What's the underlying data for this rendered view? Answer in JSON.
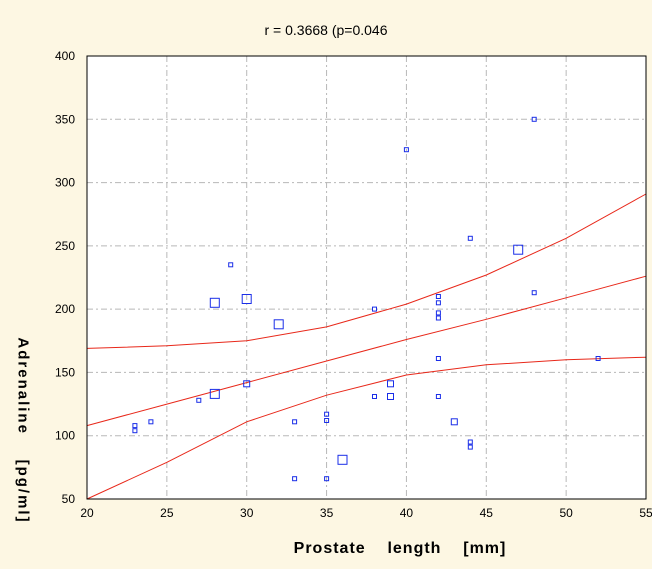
{
  "chart_data": {
    "type": "scatter",
    "title": "r = 0.3668 (p=0.046",
    "xlabel": "Prostate    length    [mm]",
    "ylabel": "Adrenaline    [pg/ml]",
    "xlim": [
      20,
      55
    ],
    "ylim": [
      50,
      400
    ],
    "xticks": [
      "20",
      "25",
      "30",
      "35",
      "40",
      "45",
      "50",
      "55"
    ],
    "yticks": [
      "50",
      "100",
      "150",
      "200",
      "250",
      "300",
      "350",
      "400"
    ],
    "grid": true,
    "points": [
      {
        "x": 23,
        "y": 108,
        "size": "small"
      },
      {
        "x": 23,
        "y": 104,
        "size": "small"
      },
      {
        "x": 24,
        "y": 111,
        "size": "small"
      },
      {
        "x": 27,
        "y": 128,
        "size": "small"
      },
      {
        "x": 28,
        "y": 133,
        "size": "large"
      },
      {
        "x": 28,
        "y": 205,
        "size": "large"
      },
      {
        "x": 29,
        "y": 235,
        "size": "small"
      },
      {
        "x": 30,
        "y": 208,
        "size": "large"
      },
      {
        "x": 30,
        "y": 141,
        "size": "medium"
      },
      {
        "x": 32,
        "y": 188,
        "size": "large"
      },
      {
        "x": 33,
        "y": 111,
        "size": "small"
      },
      {
        "x": 33,
        "y": 66,
        "size": "small"
      },
      {
        "x": 35,
        "y": 117,
        "size": "small"
      },
      {
        "x": 35,
        "y": 112,
        "size": "small"
      },
      {
        "x": 35,
        "y": 66,
        "size": "small"
      },
      {
        "x": 36,
        "y": 81,
        "size": "large"
      },
      {
        "x": 38,
        "y": 200,
        "size": "small"
      },
      {
        "x": 38,
        "y": 131,
        "size": "small"
      },
      {
        "x": 39,
        "y": 141,
        "size": "medium"
      },
      {
        "x": 39,
        "y": 131,
        "size": "medium"
      },
      {
        "x": 40,
        "y": 326,
        "size": "small"
      },
      {
        "x": 42,
        "y": 210,
        "size": "small"
      },
      {
        "x": 42,
        "y": 205,
        "size": "small"
      },
      {
        "x": 42,
        "y": 197,
        "size": "small"
      },
      {
        "x": 42,
        "y": 193,
        "size": "small"
      },
      {
        "x": 42,
        "y": 161,
        "size": "small"
      },
      {
        "x": 42,
        "y": 131,
        "size": "small"
      },
      {
        "x": 43,
        "y": 111,
        "size": "medium"
      },
      {
        "x": 44,
        "y": 256,
        "size": "small"
      },
      {
        "x": 44,
        "y": 95,
        "size": "small"
      },
      {
        "x": 44,
        "y": 91,
        "size": "small"
      },
      {
        "x": 47,
        "y": 247,
        "size": "large"
      },
      {
        "x": 48,
        "y": 350,
        "size": "small"
      },
      {
        "x": 48,
        "y": 213,
        "size": "small"
      },
      {
        "x": 52,
        "y": 161,
        "size": "small"
      }
    ],
    "lines": [
      {
        "name": "upper",
        "x": [
          20,
          25,
          30,
          35,
          40,
          45,
          50,
          55
        ],
        "y": [
          169,
          171,
          175,
          186,
          204,
          227,
          256,
          291
        ]
      },
      {
        "name": "fit",
        "x": [
          20,
          25,
          30,
          35,
          40,
          45,
          50,
          55
        ],
        "y": [
          108,
          125,
          142,
          159,
          176,
          192,
          209,
          226
        ]
      },
      {
        "name": "lower",
        "x": [
          20,
          25,
          30,
          35,
          40,
          45,
          50,
          55
        ],
        "y": [
          47,
          79,
          111,
          132,
          148,
          156,
          160,
          162
        ]
      }
    ],
    "colors": {
      "points": "#1a2ee8",
      "lines": "#e8281a",
      "grid": "#b8b8b8",
      "background": "#fdf7e3",
      "plot_background": "#ffffff"
    }
  }
}
